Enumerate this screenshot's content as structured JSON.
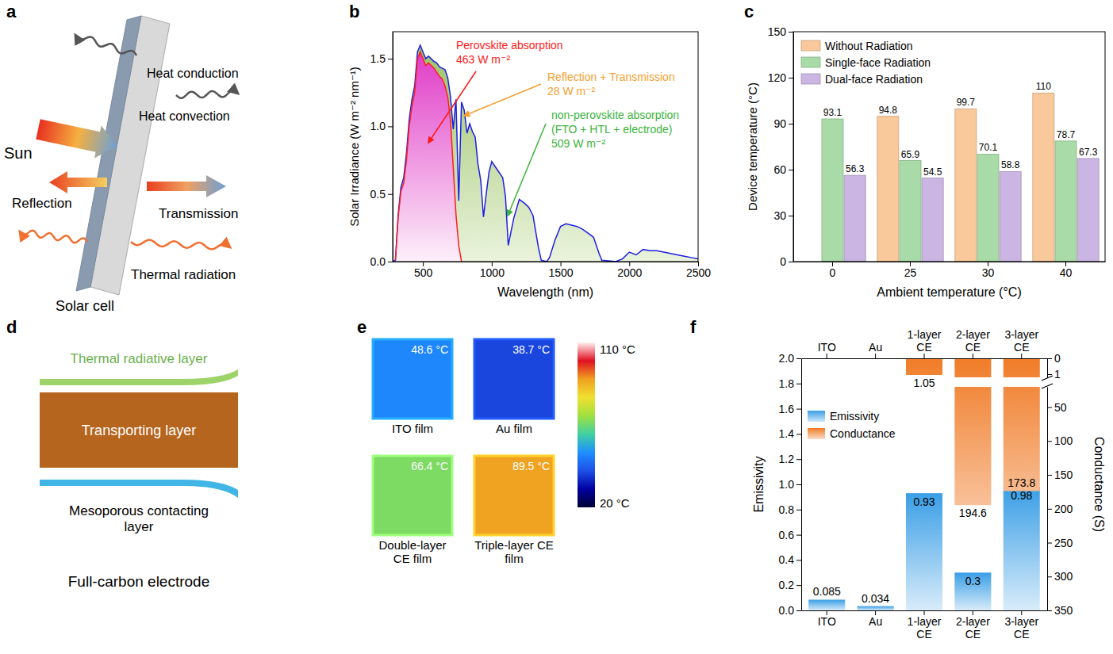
{
  "chart_data": [
    {
      "panel": "b",
      "type": "area",
      "x_label": "Wavelength (nm)",
      "y_label": "Solar Irradiance (W m⁻² nm⁻¹)",
      "xlim": [
        280,
        2500
      ],
      "xticks": [
        500,
        1000,
        1500,
        2000,
        2500
      ],
      "ylim": [
        0,
        1.7
      ],
      "yticks": [
        {
          "value": 0,
          "label": "0.0"
        },
        0.5,
        {
          "value": 1,
          "label": "1.0"
        },
        1.5
      ],
      "series": [
        {
          "color": "#1e1ee6",
          "x": [
            280,
            300,
            320,
            340,
            360,
            380,
            400,
            420,
            440,
            460,
            480,
            500,
            520,
            540,
            560,
            580,
            600,
            620,
            640,
            660,
            680,
            700,
            720,
            740,
            760,
            780,
            800,
            820,
            840,
            860,
            880,
            900,
            920,
            940,
            960,
            980,
            1000,
            1040,
            1080,
            1100,
            1120,
            1140,
            1160,
            1200,
            1240,
            1270,
            1300,
            1340,
            1360,
            1400,
            1420,
            1460,
            1500,
            1540,
            1580,
            1620,
            1660,
            1700,
            1740,
            1780,
            1800,
            1900,
            1950,
            2000,
            2050,
            2100,
            2150,
            2200,
            2250,
            2300,
            2350,
            2400,
            2450,
            2500
          ],
          "values": [
            0,
            0.01,
            0.35,
            0.55,
            0.62,
            0.8,
            1.05,
            1.2,
            1.3,
            1.55,
            1.6,
            1.55,
            1.5,
            1.52,
            1.5,
            1.48,
            1.47,
            1.44,
            1.43,
            1.42,
            1.36,
            1.22,
            0.98,
            1.2,
            0.45,
            1.18,
            1.12,
            0.95,
            1.02,
            0.96,
            0.92,
            0.72,
            0.6,
            0.33,
            0.5,
            0.66,
            0.74,
            0.68,
            0.62,
            0.48,
            0.12,
            0.22,
            0.32,
            0.46,
            0.43,
            0.4,
            0.34,
            0.1,
            0.01,
            0.0,
            0.03,
            0.16,
            0.26,
            0.28,
            0.27,
            0.26,
            0.24,
            0.21,
            0.18,
            0.06,
            0.01,
            0.0,
            0.02,
            0.07,
            0.05,
            0.09,
            0.08,
            0.08,
            0.07,
            0.06,
            0.05,
            0.04,
            0.03,
            0.02
          ]
        },
        {
          "color": "#ff1e1e",
          "x": [
            300,
            320,
            340,
            360,
            380,
            400,
            420,
            440,
            460,
            480,
            500,
            520,
            540,
            560,
            580,
            600,
            620,
            640,
            660,
            680,
            700,
            720,
            740,
            760,
            780
          ],
          "values": [
            0.01,
            0.33,
            0.52,
            0.58,
            0.75,
            1.0,
            1.15,
            1.25,
            1.5,
            1.55,
            1.5,
            1.45,
            1.47,
            1.45,
            1.43,
            1.4,
            1.37,
            1.35,
            1.3,
            1.22,
            1.05,
            0.7,
            0.35,
            0.12,
            0
          ]
        }
      ],
      "annotations": [
        {
          "lines": [
            "Perovskite absorption",
            "463 W m⁻²"
          ],
          "color": "#ff1a1a"
        },
        {
          "lines": [
            "Reflection + Transmission",
            "28 W m⁻²"
          ],
          "color": "#f5a030"
        },
        {
          "lines": [
            "non-perovskite absorption",
            "(FTO + HTL + electrode)",
            "509 W m⁻²"
          ],
          "color": "#3cb43c"
        }
      ]
    },
    {
      "panel": "c",
      "type": "bar",
      "x_label": "Ambient temperature (°C)",
      "y_label": "Device temperature (°C)",
      "categories": [
        "0",
        "25",
        "30",
        "40"
      ],
      "series": [
        {
          "name": "Without Radiation",
          "color": "#f9c89b",
          "values": [
            null,
            94.8,
            99.7,
            110
          ]
        },
        {
          "name": "Single-face Radiation",
          "color": "#a9dba8",
          "values": [
            93.1,
            65.9,
            70.1,
            78.7
          ]
        },
        {
          "name": "Dual-face Radiation",
          "color": "#cbb5e2",
          "values": [
            56.3,
            54.5,
            58.8,
            67.3
          ]
        }
      ],
      "ylim": [
        0,
        150
      ],
      "yticks": [
        0,
        30,
        60,
        90,
        120,
        150
      ],
      "data_labels": true,
      "legend": "upper left"
    },
    {
      "panel": "f",
      "type": "bar",
      "y_label": "Emissivity",
      "y2_label": "Conductance (S)",
      "categories": [
        "ITO",
        "Au",
        "1-layer CE",
        "2-layer CE",
        "3-layer CE"
      ],
      "series": [
        {
          "name": "Emissivity",
          "color": "#3a9ee6",
          "values": [
            0.085,
            0.034,
            0.93,
            0.3,
            0.98
          ]
        },
        {
          "name": "Conductance",
          "color": "#f07c28",
          "values": [
            null,
            null,
            1.05,
            194.6,
            173.8
          ],
          "axis": "y2"
        }
      ],
      "ylim": [
        0,
        2
      ],
      "yticks": [
        {
          "value": 0,
          "label": "0.0"
        },
        0.2,
        0.4,
        0.6,
        0.8,
        {
          "value": 1,
          "label": "1.0"
        },
        1.2,
        1.4,
        1.6,
        1.8,
        {
          "value": 2,
          "label": "2.0"
        }
      ],
      "y2lim": [
        350,
        0
      ],
      "y2ticks": [
        0,
        1,
        50,
        100,
        150,
        200,
        250,
        300,
        350
      ],
      "y2break": [
        1.2,
        20
      ],
      "data_labels": true,
      "legend": "upper left"
    }
  ],
  "diagrams": [
    {
      "panel": "a",
      "labels": [
        "Heat conduction",
        "Heat convection",
        "Sun",
        "Reflection",
        "Transmission",
        "Thermal radiation",
        "Solar cell"
      ]
    },
    {
      "panel": "d",
      "labels": [
        "Thermal radiative layer",
        "Transporting layer",
        "Mesoporous contacting layer",
        "Full-carbon electrode"
      ]
    }
  ],
  "thermal_images": {
    "panel": "e",
    "images": [
      {
        "label": "ITO film",
        "temperature": 48.6,
        "temperature_label": "48.6 °C"
      },
      {
        "label": "Au film",
        "temperature": 38.7,
        "temperature_label": "38.7 °C"
      },
      {
        "label": "Double-layer CE film",
        "temperature": 66.4,
        "temperature_label": "66.4 °C"
      },
      {
        "label": "Triple-layer CE film",
        "temperature": 89.5,
        "temperature_label": "89.5 °C"
      }
    ],
    "colorbar": {
      "min": 20,
      "max": 110,
      "min_label": "20 °C",
      "max_label": "110 °C"
    }
  }
}
